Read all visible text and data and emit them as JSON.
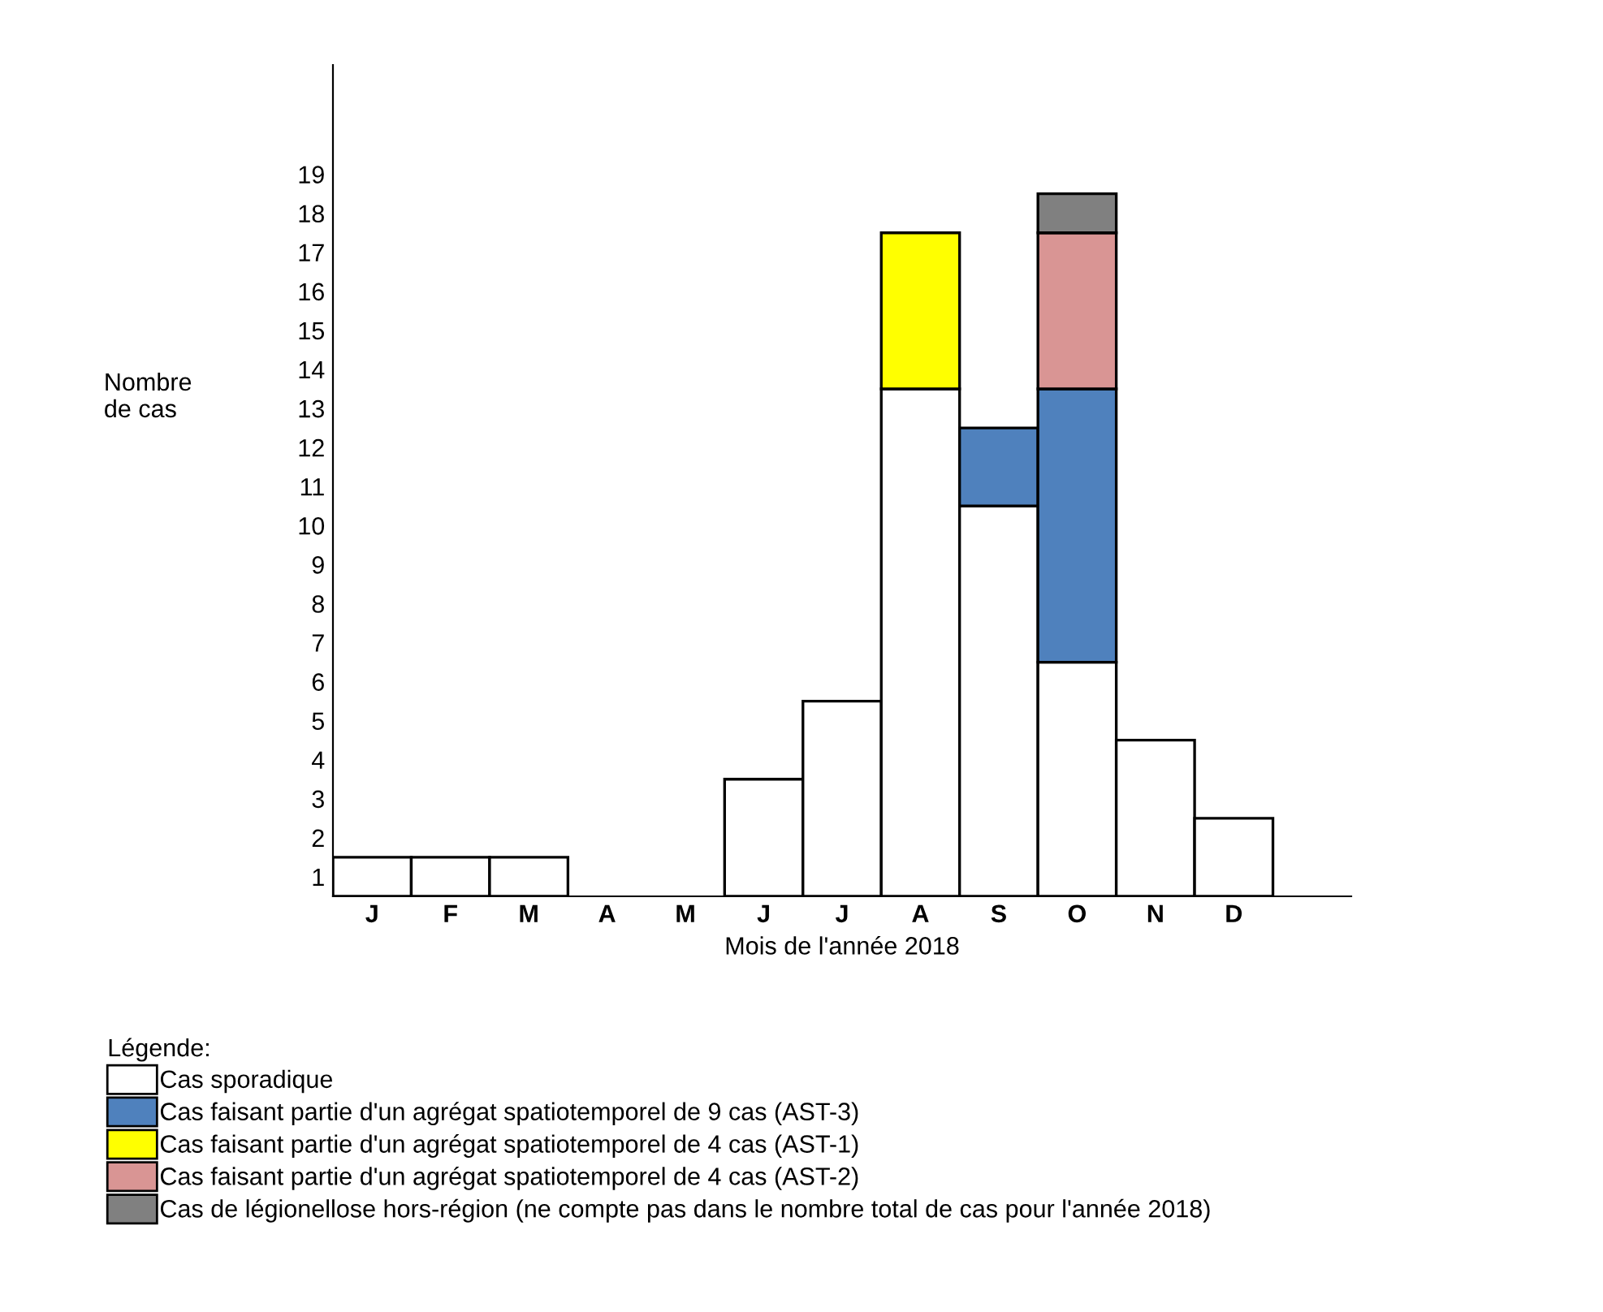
{
  "chart_data": {
    "type": "bar",
    "stacked": true,
    "categories": [
      "J",
      "F",
      "M",
      "A",
      "M",
      "J",
      "J",
      "A",
      "S",
      "O",
      "N",
      "D",
      null
    ],
    "xlabel": "Mois de l'année 2018",
    "ylabel": "Nombre\nde cas",
    "legend_title": "Légende:",
    "series": [
      {
        "name": "Cas sporadique",
        "color": "#ffffff",
        "values": [
          1,
          1,
          1,
          0,
          0,
          3,
          5,
          13,
          10,
          6,
          4,
          2,
          null
        ]
      },
      {
        "name": "Cas faisant partie d'un agrégat spatiotemporel de 9 cas (AST-3)",
        "color": "#4f81bd",
        "values": [
          null,
          null,
          null,
          null,
          null,
          null,
          null,
          null,
          2,
          7,
          null,
          null,
          null
        ]
      },
      {
        "name": "Cas faisant partie d'un agrégat spatiotemporel de 4 cas (AST-1)",
        "color": "#ffff00",
        "values": [
          null,
          null,
          null,
          null,
          null,
          null,
          null,
          4,
          null,
          null,
          null,
          null,
          null
        ]
      },
      {
        "name": "Cas faisant partie d'un agrégat spatiotemporel de 4 cas (AST-2)",
        "color": "#d99594",
        "values": [
          null,
          null,
          null,
          null,
          null,
          null,
          null,
          null,
          null,
          4,
          null,
          null,
          null
        ]
      },
      {
        "name": "Cas de légionellose hors-région (ne compte pas dans le nombre total de cas pour l'année 2018)",
        "color": "#808080",
        "values": [
          null,
          null,
          null,
          null,
          null,
          null,
          null,
          null,
          null,
          1,
          null,
          null,
          null
        ]
      }
    ],
    "ylim": [
      0,
      21.3
    ],
    "yticks": [
      {
        "value": 0.5,
        "label": "1"
      },
      {
        "value": 1.5,
        "label": "2"
      },
      {
        "value": 2.5,
        "label": "3"
      },
      {
        "value": 3.5,
        "label": "4"
      },
      {
        "value": 4.5,
        "label": "5"
      },
      {
        "value": 5.5,
        "label": "6"
      },
      {
        "value": 6.5,
        "label": "7"
      },
      {
        "value": 7.5,
        "label": "8"
      },
      {
        "value": 8.5,
        "label": "9"
      },
      {
        "value": 9.5,
        "label": "10"
      },
      {
        "value": 10.5,
        "label": "11"
      },
      {
        "value": 11.5,
        "label": "12"
      },
      {
        "value": 12.5,
        "label": "13"
      },
      {
        "value": 13.5,
        "label": "14"
      },
      {
        "value": 14.5,
        "label": "15"
      },
      {
        "value": 15.5,
        "label": "16"
      },
      {
        "value": 16.5,
        "label": "17"
      },
      {
        "value": 17.5,
        "label": "18"
      },
      {
        "value": 18.5,
        "label": "19"
      }
    ],
    "grid": false,
    "legend": "bottom left"
  }
}
